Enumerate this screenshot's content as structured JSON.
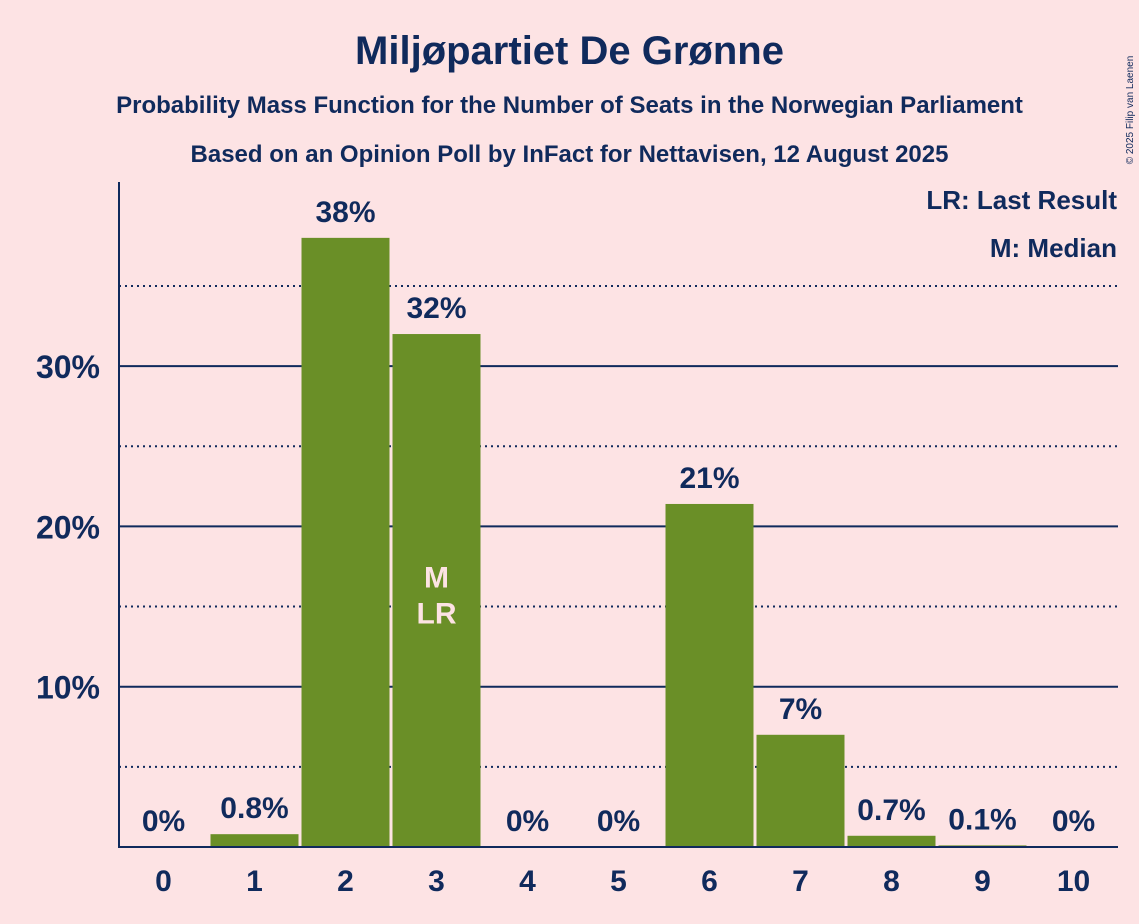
{
  "chart_data": {
    "type": "bar",
    "title": "Miljøpartiet De Grønne",
    "subtitle": "Probability Mass Function for the Number of Seats in the Norwegian Parliament",
    "subtitle2": "Based on an Opinion Poll by InFact for Nettavisen, 12 August 2025",
    "categories": [
      "0",
      "1",
      "2",
      "3",
      "4",
      "5",
      "6",
      "7",
      "8",
      "9",
      "10"
    ],
    "values": [
      0,
      0.8,
      38,
      32,
      0,
      0,
      21.4,
      7,
      0.7,
      0.1,
      0
    ],
    "value_labels": [
      "0%",
      "0.8%",
      "38%",
      "32%",
      "0%",
      "0%",
      "21%",
      "7%",
      "0.7%",
      "0.1%",
      "0%"
    ],
    "ylim": [
      0,
      41.5
    ],
    "yticks": [
      10,
      20,
      30
    ],
    "ytick_labels": [
      "10%",
      "20%",
      "30%"
    ],
    "minor_gridlines": [
      5,
      15,
      25,
      35
    ],
    "median_index": 3,
    "last_result_index": 3,
    "median_marker": "M",
    "last_result_marker": "LR",
    "legend": [
      "LR: Last Result",
      "M: Median"
    ],
    "legend_position": "top-right",
    "bar_color": "#6a8f27",
    "axis_color": "#102a5c",
    "background_color": "#fde3e4",
    "copyright": "© 2025 Filip van Laenen"
  }
}
